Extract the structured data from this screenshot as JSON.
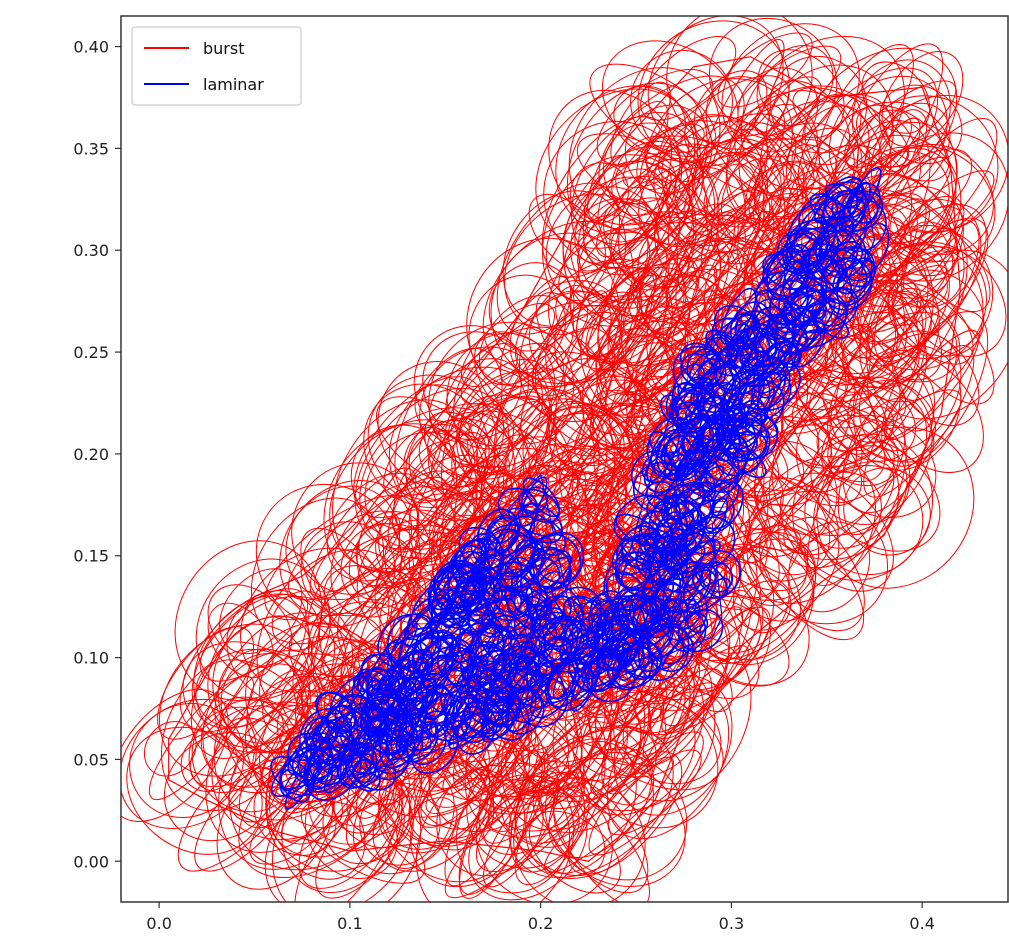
{
  "chart_data": {
    "type": "line",
    "title": "",
    "xlabel": "",
    "ylabel": "",
    "xlim": [
      -0.02,
      0.445
    ],
    "ylim": [
      -0.02,
      0.415
    ],
    "grid": false,
    "legend_position": "top-left",
    "x_ticks": [
      "0.0",
      "0.1",
      "0.2",
      "0.3",
      "0.4"
    ],
    "y_ticks": [
      "0.00",
      "0.05",
      "0.10",
      "0.15",
      "0.20",
      "0.25",
      "0.30",
      "0.35",
      "0.40"
    ],
    "series": [
      {
        "name": "burst",
        "color": "#ff0000",
        "x": [
          0.005,
          0.03,
          0.05,
          0.075,
          0.1,
          0.14,
          0.19,
          0.22,
          0.245,
          0.28,
          0.31,
          0.35,
          0.4,
          0.415,
          0.42,
          0.41,
          0.38,
          0.33,
          0.285,
          0.26,
          0.245,
          0.225,
          0.2,
          0.15,
          0.1,
          0.06,
          0.025,
          0.005
        ],
        "y": [
          0.06,
          0.1,
          0.13,
          0.14,
          0.16,
          0.21,
          0.27,
          0.32,
          0.355,
          0.39,
          0.395,
          0.375,
          0.38,
          0.34,
          0.28,
          0.22,
          0.16,
          0.125,
          0.09,
          0.03,
          0.015,
          0.0,
          0.005,
          0.01,
          0.005,
          0.015,
          0.03,
          0.04
        ]
      },
      {
        "name": "laminar",
        "color": "#0000ff",
        "x": [
          0.065,
          0.09,
          0.12,
          0.15,
          0.18,
          0.2,
          0.215,
          0.24,
          0.255,
          0.27,
          0.3,
          0.33,
          0.35,
          0.37,
          0.375,
          0.36,
          0.33,
          0.31,
          0.29,
          0.295,
          0.29,
          0.275,
          0.24,
          0.2,
          0.16,
          0.12,
          0.09,
          0.065
        ],
        "y": [
          0.035,
          0.075,
          0.1,
          0.135,
          0.17,
          0.19,
          0.125,
          0.13,
          0.18,
          0.225,
          0.265,
          0.3,
          0.325,
          0.33,
          0.305,
          0.27,
          0.245,
          0.2,
          0.165,
          0.12,
          0.11,
          0.105,
          0.09,
          0.075,
          0.06,
          0.045,
          0.04,
          0.035
        ]
      }
    ]
  }
}
